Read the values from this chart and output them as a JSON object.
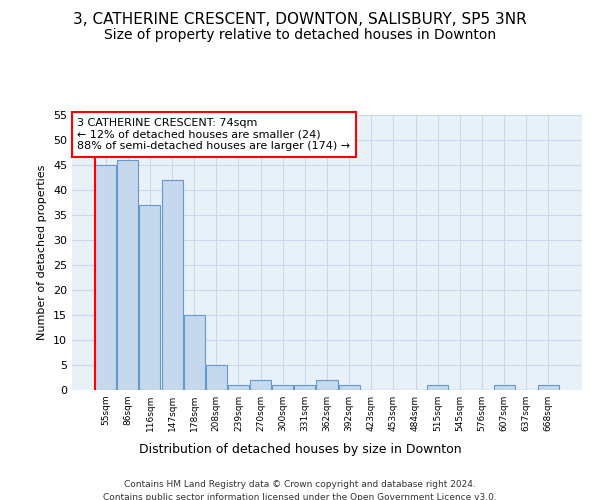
{
  "title": "3, CATHERINE CRESCENT, DOWNTON, SALISBURY, SP5 3NR",
  "subtitle": "Size of property relative to detached houses in Downton",
  "xlabel": "Distribution of detached houses by size in Downton",
  "ylabel": "Number of detached properties",
  "footer_line1": "Contains HM Land Registry data © Crown copyright and database right 2024.",
  "footer_line2": "Contains public sector information licensed under the Open Government Licence v3.0.",
  "bar_labels": [
    "55sqm",
    "86sqm",
    "116sqm",
    "147sqm",
    "178sqm",
    "208sqm",
    "239sqm",
    "270sqm",
    "300sqm",
    "331sqm",
    "362sqm",
    "392sqm",
    "423sqm",
    "453sqm",
    "484sqm",
    "515sqm",
    "545sqm",
    "576sqm",
    "607sqm",
    "637sqm",
    "668sqm"
  ],
  "bar_values": [
    45,
    46,
    37,
    42,
    15,
    5,
    1,
    2,
    1,
    1,
    2,
    1,
    0,
    0,
    0,
    1,
    0,
    0,
    1,
    0,
    1
  ],
  "bar_color": "#c5d8ed",
  "bar_edge_color": "#6699cc",
  "annotation_title": "3 CATHERINE CRESCENT: 74sqm",
  "annotation_line1": "← 12% of detached houses are smaller (24)",
  "annotation_line2": "88% of semi-detached houses are larger (174) →",
  "annotation_box_color": "white",
  "annotation_box_edge": "red",
  "vline_color": "red",
  "ylim": [
    0,
    55
  ],
  "yticks": [
    0,
    5,
    10,
    15,
    20,
    25,
    30,
    35,
    40,
    45,
    50,
    55
  ],
  "grid_color": "#c8d8ee",
  "background_color": "#e8f0f8",
  "title_fontsize": 11,
  "subtitle_fontsize": 10,
  "annotation_fontsize": 8,
  "ylabel_fontsize": 8,
  "xlabel_fontsize": 9,
  "footer_fontsize": 6.5
}
